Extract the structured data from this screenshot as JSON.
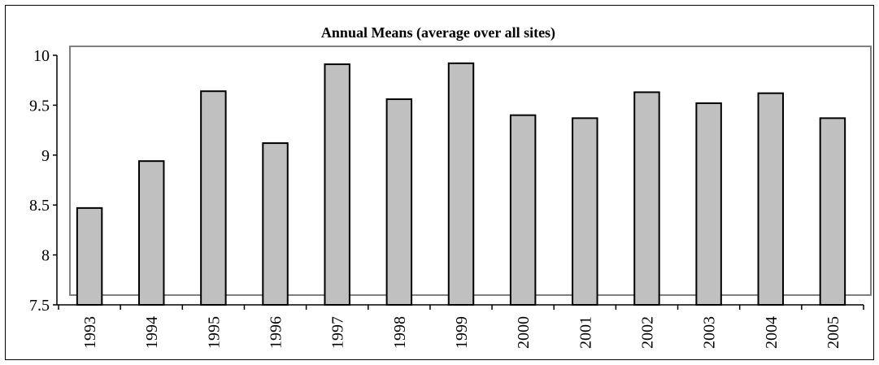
{
  "chart_data": {
    "type": "bar",
    "title": "Annual Means (average over all sites)",
    "xlabel": "",
    "ylabel": "",
    "categories": [
      "1993",
      "1994",
      "1995",
      "1996",
      "1997",
      "1998",
      "1999",
      "2000",
      "2001",
      "2002",
      "2003",
      "2004",
      "2005"
    ],
    "values": [
      8.47,
      8.94,
      9.64,
      9.12,
      9.91,
      9.56,
      9.92,
      9.4,
      9.37,
      9.63,
      9.52,
      9.62,
      9.37
    ],
    "ylim": [
      7.5,
      10
    ],
    "yticks": [
      "7.5",
      "8",
      "8.5",
      "9",
      "9.5",
      "10"
    ],
    "grid": false,
    "legend": "none",
    "colors": {
      "bar_fill": "#c0c0c0",
      "bar_stroke": "#000000",
      "plot_border": "#808080",
      "axis": "#000000"
    }
  }
}
